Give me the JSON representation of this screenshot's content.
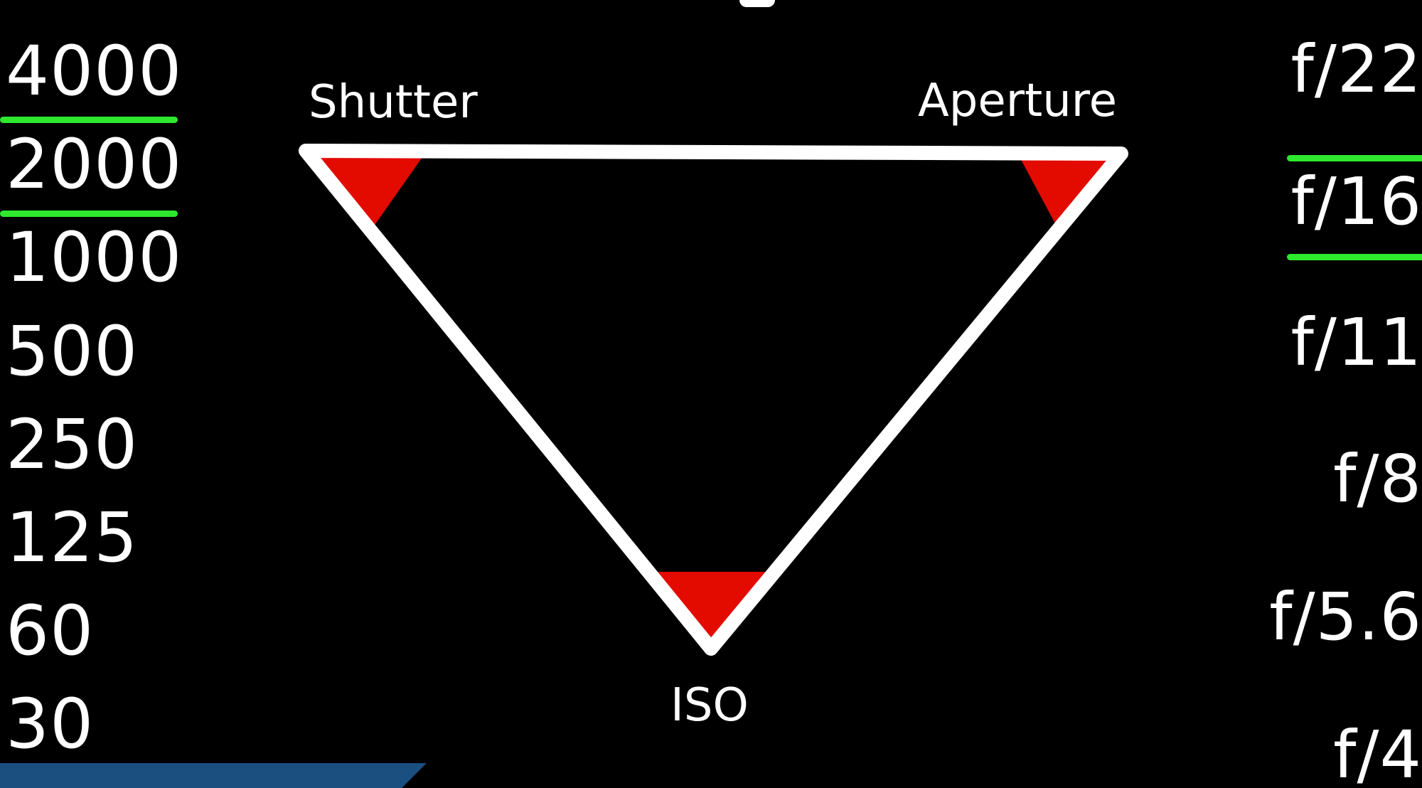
{
  "shutter_speeds": [
    "4000",
    "2000",
    "1000",
    "500",
    "250",
    "125",
    "60",
    "30"
  ],
  "apertures": [
    "f/22",
    "f/16",
    "f/11",
    "f/8",
    "f/5.6",
    "f/4"
  ],
  "labels": {
    "shutter": "Shutter",
    "aperture": "Aperture",
    "iso": "ISO"
  },
  "colors": {
    "background": "#000000",
    "text": "#ffffff",
    "highlight": "#2ee82e",
    "corner_marker": "#e30b00",
    "banner": "#1b4f80"
  }
}
